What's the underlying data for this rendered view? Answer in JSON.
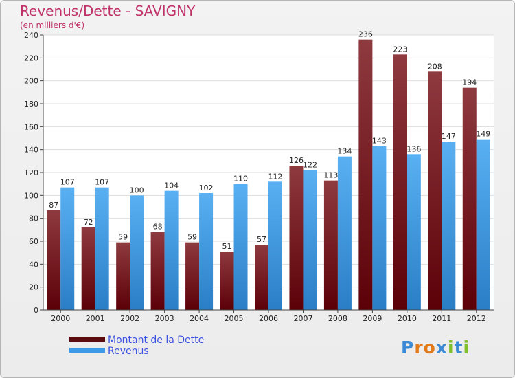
{
  "header": {
    "title": "Revenus/Dette - SAVIGNY",
    "subtitle": "(en milliers d'€)"
  },
  "chart_data": {
    "type": "bar",
    "categories": [
      "2000",
      "2001",
      "2002",
      "2003",
      "2004",
      "2005",
      "2006",
      "2007",
      "2008",
      "2009",
      "2010",
      "2011",
      "2012"
    ],
    "series": [
      {
        "name": "Montant de la Dette",
        "values": [
          87,
          72,
          59,
          68,
          59,
          51,
          57,
          126,
          113,
          236,
          223,
          208,
          194
        ],
        "color": "#7a1a1f"
      },
      {
        "name": "Revenus",
        "values": [
          107,
          107,
          100,
          104,
          102,
          110,
          112,
          122,
          134,
          143,
          136,
          147,
          149
        ],
        "color": "#3d9ae8"
      }
    ],
    "ylim": [
      0,
      240
    ],
    "yticks": [
      0,
      20,
      40,
      60,
      80,
      100,
      120,
      140,
      160,
      180,
      200,
      220,
      240
    ],
    "grid": true,
    "legend": "bottom-left"
  },
  "legend": {
    "items": [
      {
        "label": "Montant de la Dette",
        "color": "#5c0a0e"
      },
      {
        "label": "Revenus",
        "color": "#3d9ae8"
      }
    ]
  },
  "logo": {
    "letters": [
      "P",
      "r",
      "o",
      "x",
      "i",
      "t",
      "i"
    ],
    "colors": [
      "#3a8ad6",
      "#e07a1a",
      "#e07a1a",
      "#3a8ad6",
      "#7fbf2a",
      "#3a8ad6",
      "#7fbf2a"
    ]
  }
}
